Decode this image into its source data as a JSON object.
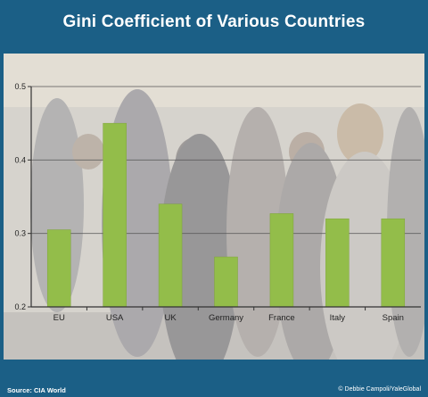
{
  "header": {
    "title": "Gini Coefficient of Various Countries"
  },
  "footer": {
    "source": "Source: CIA World",
    "credit": "© Debbie Campoli/YaleGlobal"
  },
  "colors": {
    "frame": "#1b5f86",
    "bar": "#93bd4a",
    "bar_stroke": "#7ea43a",
    "axis": "#333333",
    "grid": "#555555"
  },
  "chart_data": {
    "type": "bar",
    "title": "",
    "xlabel": "",
    "ylabel": "",
    "categories": [
      "EU",
      "USA",
      "UK",
      "Germany",
      "France",
      "Italy",
      "Spain"
    ],
    "values": [
      0.305,
      0.45,
      0.34,
      0.268,
      0.327,
      0.32,
      0.32
    ],
    "ylim": [
      0.2,
      0.5
    ],
    "yticks": [
      0.2,
      0.3,
      0.4,
      0.5
    ],
    "ytick_labels": [
      "0.2",
      "0.3",
      "0.4",
      "0.5"
    ],
    "grid": true,
    "legend": "none"
  }
}
